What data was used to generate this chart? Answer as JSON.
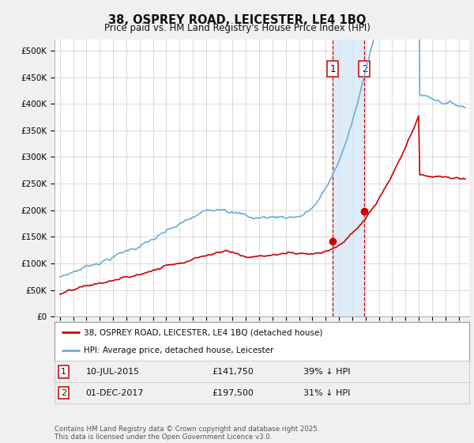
{
  "title": "38, OSPREY ROAD, LEICESTER, LE4 1BQ",
  "subtitle": "Price paid vs. HM Land Registry's House Price Index (HPI)",
  "ylim": [
    0,
    520000
  ],
  "yticks": [
    0,
    50000,
    100000,
    150000,
    200000,
    250000,
    300000,
    350000,
    400000,
    450000,
    500000
  ],
  "ytick_labels": [
    "£0",
    "£50K",
    "£100K",
    "£150K",
    "£200K",
    "£250K",
    "£300K",
    "£350K",
    "£400K",
    "£450K",
    "£500K"
  ],
  "hpi_color": "#6baed6",
  "property_color": "#cc0000",
  "sale1_date": 2015.54,
  "sale1_price": 141750,
  "sale2_date": 2017.92,
  "sale2_price": 197500,
  "vline_color": "#cc0000",
  "shade_color": "#d6e8f5",
  "legend_property": "38, OSPREY ROAD, LEICESTER, LE4 1BQ (detached house)",
  "legend_hpi": "HPI: Average price, detached house, Leicester",
  "background_color": "#f0f0f0",
  "plot_bg_color": "#ffffff",
  "grid_color": "#cccccc",
  "footer": "Contains HM Land Registry data © Crown copyright and database right 2025.\nThis data is licensed under the Open Government Licence v3.0."
}
